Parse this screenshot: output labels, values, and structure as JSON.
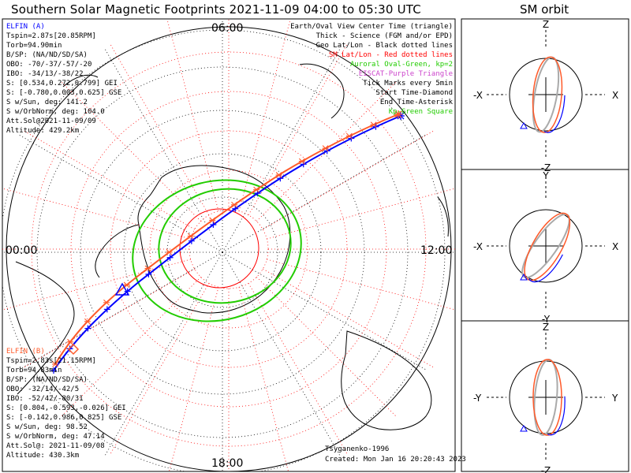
{
  "title": "Southern Solar Magnetic Footprints 2021-11-09 04:00 to 05:30 UTC",
  "orbit_title": "SM orbit",
  "mlt_labels": {
    "top": "06:00",
    "left": "00:00",
    "right": "12:00",
    "bottom": "18:00"
  },
  "elfin_a": {
    "name": "ELFIN (A)",
    "color": "#0000ff",
    "lines": [
      "Tspin=2.87s[20.85RPM]",
      "Torb=94.90min",
      "B/SP: (NA/ND/SD/SA)",
      "OBO: -70/-37/-57/-20",
      "IBO: -34/13/-38/22",
      "S: [0.534,0.272,0.799] GEI",
      "S: [-0.780,0.003,0.625] GSE",
      "S w/Sun, deg: 141.2",
      "S w/OrbNorm, deg: 104.0",
      "Att.Sol@2021-11-09/09",
      "Altitude: 429.2km"
    ]
  },
  "elfin_b": {
    "name": "ELFIN (B)",
    "color": "#ff5a2a",
    "lines": [
      "Tspin=2.83s[21.15RPM]",
      "Torb=94.83min",
      "B/SP: (NA/ND/SD/SA)",
      "OBO: -32/14/-42/5",
      "IBO: -52/42/-80/31",
      "S: [0.804,-0.593,-0.026] GEI",
      "S: [-0.142,0.986,0.825] GSE",
      "S w/Sun, deg: 98.52",
      "S w/OrbNorm, deg: 47.14",
      "Att.Sol@: 2021-11-09/08",
      "Altitude: 430.3km"
    ]
  },
  "legend": [
    {
      "text": "Earth/Oval View Center Time (triangle)",
      "color": "#000000"
    },
    {
      "text": "Thick - Science (FGM and/or EPD)",
      "color": "#000000"
    },
    {
      "text": "Geo Lat/Lon - Black dotted lines",
      "color": "#000000"
    },
    {
      "text": "SM Lat/Lon - Red dotted lines",
      "color": "#ff0000"
    },
    {
      "text": "Auroral Oval-Green, kp=2",
      "color": "#22cc00"
    },
    {
      "text": "EISCAT-Purple Triangle",
      "color": "#cc44cc"
    },
    {
      "text": "Tick Marks every 5min",
      "color": "#000000"
    },
    {
      "text": "Start Time-Diamond",
      "color": "#000000"
    },
    {
      "text": "End Time-Asterisk",
      "color": "#000000"
    },
    {
      "text": "Kp-Green Square",
      "color": "#22cc00"
    }
  ],
  "credits": {
    "author": "Tsyganenko-1996",
    "created": "Created: Mon Jan 16 20:20:43 2023"
  },
  "orbit_panels": [
    {
      "top": "Z",
      "bottom": "-Z",
      "left": "-X",
      "right": "X"
    },
    {
      "top": "Y",
      "bottom": "-Y",
      "left": "-X",
      "right": "X"
    },
    {
      "top": "Z",
      "bottom": "-Z",
      "left": "-Y",
      "right": "Y"
    }
  ],
  "chart_data": {
    "type": "scatter",
    "projection": "polar (SM magnetic latitude / MLT), southern hemisphere",
    "sm_lat_rings_deg": [
      -50,
      -60,
      -70,
      -80
    ],
    "colors": {
      "elfin_a": "#0000ff",
      "elfin_b": "#ff5a2a",
      "sm_grid": "#ff0000",
      "auroral_oval": "#22cc00"
    }
  }
}
